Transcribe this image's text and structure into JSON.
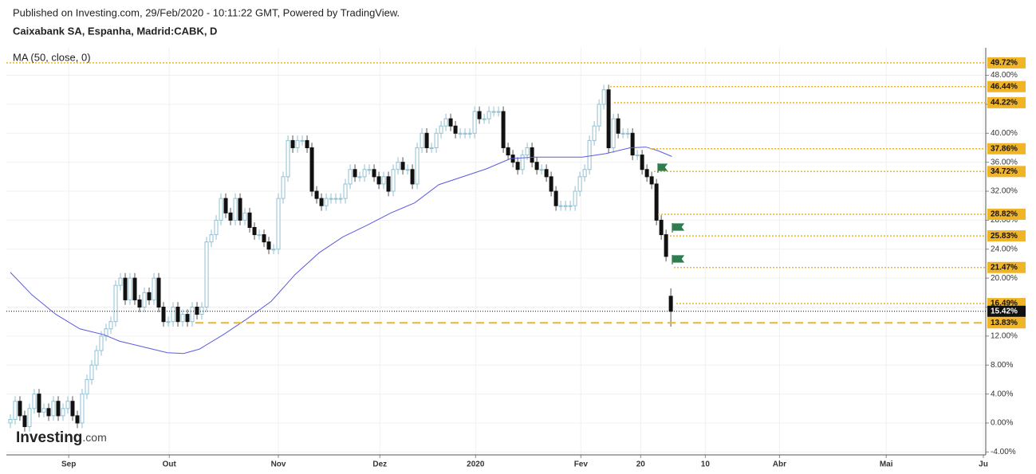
{
  "header": {
    "published": "Published on Investing.com, 29/Feb/2020 - 10:11:22 GMT, Powered by TradingView.",
    "symbol": "Caixabank SA, Espanha, Madrid:CABK, D"
  },
  "logo": {
    "name": "Investing",
    "suffix": ".com"
  },
  "chart_data": {
    "type": "candlestick",
    "xlim": [
      -0.83,
      203.8
    ],
    "xticks": [
      {
        "value": 12.2,
        "label": "Sep"
      },
      {
        "value": 33.2,
        "label": "Out"
      },
      {
        "value": 56,
        "label": "Nov"
      },
      {
        "value": 77.2,
        "label": "Dez"
      },
      {
        "value": 97.2,
        "label": "2020"
      },
      {
        "value": 119.2,
        "label": "Fev"
      },
      {
        "value": 131.7,
        "label": "20"
      },
      {
        "value": 145.2,
        "label": "10"
      },
      {
        "value": 160.7,
        "label": "Abr"
      },
      {
        "value": 183,
        "label": "Mai"
      },
      {
        "value": 203.3,
        "label": "Ju"
      }
    ],
    "ylim": [
      -4.4,
      51.8
    ],
    "yticks": [
      {
        "value": -4,
        "label": "-4.00%"
      },
      {
        "value": 0,
        "label": "0.00%"
      },
      {
        "value": 4,
        "label": "4.00%"
      },
      {
        "value": 8,
        "label": "8.00%"
      },
      {
        "value": 12,
        "label": "12.00%"
      },
      {
        "value": 16,
        "label": "16.00%"
      },
      {
        "value": 20,
        "label": "20.00%"
      },
      {
        "value": 24,
        "label": "24.00%"
      },
      {
        "value": 28,
        "label": "28.00%"
      },
      {
        "value": 32,
        "label": "32.00%"
      },
      {
        "value": 36,
        "label": "36.00%"
      },
      {
        "value": 40,
        "label": "40.00%"
      },
      {
        "value": 44,
        "label": "44.00%"
      },
      {
        "value": 48,
        "label": "48.00%"
      }
    ],
    "grid": true,
    "up_color": "#8fc1d4",
    "down_color": "#111111",
    "candles": [
      [
        0,
        1.2,
        -0.7,
        0.5
      ],
      [
        0.5,
        3.7,
        -0.2,
        3
      ],
      [
        3,
        3.7,
        0.3,
        1
      ],
      [
        1,
        1.7,
        -1.2,
        -0.5
      ],
      [
        -0.5,
        2.7,
        -1.2,
        2
      ],
      [
        2,
        4.7,
        1.3,
        4
      ],
      [
        4,
        4.7,
        0.8,
        1.5
      ],
      [
        1.5,
        2.7,
        0.8,
        2
      ],
      [
        2,
        2.7,
        0.3,
        1
      ],
      [
        1,
        3.7,
        0.3,
        3
      ],
      [
        3,
        3.7,
        0.3,
        1
      ],
      [
        1,
        2.7,
        0.3,
        2
      ],
      [
        2,
        3.7,
        1.3,
        3
      ],
      [
        3,
        3.7,
        0.3,
        1
      ],
      [
        1,
        1.7,
        -0.7,
        0
      ],
      [
        0,
        4.7,
        -0.7,
        4
      ],
      [
        4,
        6.7,
        3.3,
        6
      ],
      [
        6,
        8.7,
        5.3,
        8
      ],
      [
        8,
        10.7,
        7.3,
        10
      ],
      [
        10,
        12.7,
        9.3,
        12
      ],
      [
        12,
        13.7,
        11.3,
        13
      ],
      [
        13,
        14.7,
        12.3,
        14
      ],
      [
        14,
        19.7,
        13.3,
        19
      ],
      [
        19,
        20.7,
        18.3,
        20
      ],
      [
        20,
        20.7,
        16.3,
        17
      ],
      [
        17,
        20.7,
        16.3,
        20
      ],
      [
        20,
        20.7,
        16.3,
        17
      ],
      [
        17,
        17.7,
        15.3,
        16
      ],
      [
        16,
        18.7,
        15.3,
        18
      ],
      [
        18,
        18.7,
        16.3,
        17
      ],
      [
        17,
        20.7,
        16.3,
        20
      ],
      [
        20,
        20.7,
        15.3,
        16
      ],
      [
        16,
        16.7,
        13.3,
        14
      ],
      [
        14,
        14.7,
        13.3,
        14
      ],
      [
        14,
        16.7,
        13.3,
        16
      ],
      [
        16,
        16.7,
        13.3,
        14
      ],
      [
        14,
        15.7,
        13.3,
        15
      ],
      [
        15,
        15.7,
        13.3,
        14
      ],
      [
        14,
        16.7,
        13.3,
        16
      ],
      [
        16,
        16.7,
        14.3,
        15
      ],
      [
        15,
        16.7,
        14.3,
        16
      ],
      [
        16,
        25.7,
        15.3,
        25
      ],
      [
        25,
        26.7,
        24.3,
        26
      ],
      [
        26,
        28.7,
        25.3,
        28
      ],
      [
        28,
        31.7,
        27.3,
        31
      ],
      [
        31,
        31.7,
        28.3,
        29
      ],
      [
        29,
        29.7,
        27.3,
        28
      ],
      [
        28,
        31.7,
        27.3,
        31
      ],
      [
        31,
        31.7,
        27.3,
        28
      ],
      [
        28,
        29.7,
        27.3,
        29
      ],
      [
        29,
        29.7,
        26.3,
        27
      ],
      [
        27,
        27.7,
        25.3,
        26
      ],
      [
        26,
        26.7,
        25.3,
        26
      ],
      [
        26,
        26.7,
        24.3,
        25
      ],
      [
        25,
        25.7,
        23.3,
        24
      ],
      [
        24,
        24.7,
        23.3,
        24
      ],
      [
        24,
        31.7,
        23.3,
        31
      ],
      [
        31,
        34.7,
        30.3,
        34
      ],
      [
        34,
        39.7,
        33.3,
        39
      ],
      [
        39,
        39.7,
        37.3,
        38
      ],
      [
        38,
        39.7,
        37.3,
        39
      ],
      [
        39,
        39.7,
        38.3,
        39
      ],
      [
        39,
        39.7,
        37.3,
        38
      ],
      [
        38,
        38.7,
        31.3,
        32
      ],
      [
        32,
        32.7,
        30.3,
        31
      ],
      [
        31,
        31.7,
        29.3,
        30
      ],
      [
        30,
        31.7,
        29.3,
        31
      ],
      [
        31,
        31.7,
        30.3,
        31
      ],
      [
        31,
        31.7,
        30.3,
        31
      ],
      [
        31,
        31.7,
        30.3,
        31
      ],
      [
        31,
        33.7,
        30.3,
        33
      ],
      [
        33,
        35.7,
        32.3,
        35
      ],
      [
        35,
        35.7,
        33.3,
        34
      ],
      [
        34,
        34.7,
        33.3,
        34
      ],
      [
        34,
        35.7,
        33.3,
        35
      ],
      [
        35,
        35.7,
        34.3,
        35
      ],
      [
        35,
        35.7,
        33.3,
        34
      ],
      [
        34,
        34.7,
        32.3,
        33
      ],
      [
        33,
        34.7,
        32.3,
        34
      ],
      [
        34,
        34.7,
        31.3,
        32
      ],
      [
        32,
        35.7,
        31.3,
        35
      ],
      [
        35,
        36.7,
        34.3,
        36
      ],
      [
        36,
        36.7,
        34.3,
        35
      ],
      [
        35,
        35.7,
        34.3,
        35
      ],
      [
        35,
        35.7,
        32.3,
        33
      ],
      [
        33,
        38.7,
        32.3,
        38
      ],
      [
        38,
        40.7,
        37.3,
        40
      ],
      [
        40,
        40.7,
        37.3,
        38
      ],
      [
        38,
        38.7,
        37.3,
        38
      ],
      [
        38,
        40.7,
        37.3,
        40
      ],
      [
        40,
        41.7,
        39.3,
        41
      ],
      [
        41,
        42.7,
        40.3,
        42
      ],
      [
        42,
        42.7,
        40.3,
        41
      ],
      [
        41,
        41.7,
        39.3,
        40
      ],
      [
        40,
        40.7,
        39.3,
        40
      ],
      [
        40,
        40.7,
        39.3,
        40
      ],
      [
        40,
        40.7,
        39.3,
        40
      ],
      [
        40,
        43.7,
        39.3,
        43
      ],
      [
        43,
        43.7,
        41.3,
        42
      ],
      [
        42,
        42.7,
        41.3,
        42
      ],
      [
        42,
        43.7,
        41.3,
        43
      ],
      [
        43,
        43.7,
        42.3,
        43
      ],
      [
        43,
        43.7,
        42.3,
        43
      ],
      [
        43,
        43.7,
        37.3,
        38
      ],
      [
        38,
        38.7,
        36.3,
        37
      ],
      [
        37,
        37.7,
        35.3,
        36
      ],
      [
        36,
        36.7,
        34.3,
        35
      ],
      [
        35,
        37.7,
        34.3,
        37
      ],
      [
        37,
        38.7,
        36.3,
        38
      ],
      [
        38,
        38.7,
        35.3,
        36
      ],
      [
        36,
        36.7,
        34.3,
        35
      ],
      [
        35,
        35.7,
        34.3,
        35
      ],
      [
        35,
        35.7,
        33.3,
        34
      ],
      [
        34,
        34.7,
        31.3,
        32
      ],
      [
        32,
        32.7,
        29.3,
        30
      ],
      [
        30,
        30.7,
        29.3,
        30
      ],
      [
        30,
        30.7,
        29.3,
        30
      ],
      [
        30,
        30.7,
        29.3,
        30
      ],
      [
        30,
        32.7,
        29.3,
        32
      ],
      [
        32,
        34.7,
        31.3,
        34
      ],
      [
        34,
        35.7,
        33.3,
        35
      ],
      [
        35,
        39.7,
        34.3,
        39
      ],
      [
        39,
        41.7,
        38.3,
        41
      ],
      [
        41,
        44.7,
        40.3,
        44
      ],
      [
        44,
        46.7,
        43.3,
        46
      ],
      [
        46,
        46.7,
        37.3,
        38
      ],
      [
        38,
        42.7,
        37.3,
        42
      ],
      [
        42,
        42.7,
        39.3,
        40
      ],
      [
        40,
        40.7,
        39.3,
        40
      ],
      [
        40,
        40.7,
        39.3,
        40
      ],
      [
        40,
        40.7,
        36.3,
        37
      ],
      [
        37,
        37.7,
        36.3,
        37
      ],
      [
        37,
        37.7,
        34.3,
        35
      ],
      [
        35,
        35.7,
        33.3,
        34
      ],
      [
        34,
        34.7,
        32.3,
        33
      ],
      [
        33,
        33.7,
        27.3,
        28
      ],
      [
        28,
        28.7,
        25.3,
        26
      ],
      [
        26,
        26.7,
        22.3,
        23
      ],
      [
        17.5,
        18.6,
        13.3,
        15.42
      ]
    ],
    "ma": {
      "name": "MA (50, close, 0)",
      "color": "#5b5be0",
      "x": [
        0,
        4.5,
        9.5,
        14.5,
        19.5,
        22.8,
        27.8,
        32.8,
        36.2,
        39.5,
        44.5,
        49.5,
        54.5,
        59.5,
        64.5,
        69.5,
        74.5,
        79.5,
        84.5,
        89.5,
        94.5,
        99.5,
        104.5,
        109.5,
        114.5,
        119.5,
        124.5,
        129.5,
        132.8,
        135.3,
        138.2
      ],
      "values": [
        20.8,
        17.7,
        15,
        13,
        12.2,
        11.3,
        10.5,
        9.7,
        9.6,
        10.2,
        12.2,
        14.4,
        16.8,
        20.5,
        23.5,
        25.7,
        27.3,
        29,
        30.4,
        32.9,
        34,
        35.1,
        36.5,
        36.7,
        36.7,
        36.7,
        37.2,
        38,
        38.1,
        37.6,
        36.8
      ]
    },
    "levels": [
      {
        "value": 49.72,
        "label": "49.72%"
      },
      {
        "value": 46.44,
        "label": "46.44%"
      },
      {
        "value": 44.22,
        "label": "44.22%"
      },
      {
        "value": 37.86,
        "label": "37.86%"
      },
      {
        "value": 34.72,
        "label": "34.72%"
      },
      {
        "value": 28.82,
        "label": "28.82%"
      },
      {
        "value": 25.83,
        "label": "25.83%"
      },
      {
        "value": 21.47,
        "label": "21.47%"
      },
      {
        "value": 16.49,
        "label": "16.49%"
      }
    ],
    "level_color": "#f0b429",
    "support": {
      "value": 13.83,
      "label": "13.83%"
    },
    "last_price": {
      "value": 15.42,
      "label": "15.42%"
    }
  }
}
